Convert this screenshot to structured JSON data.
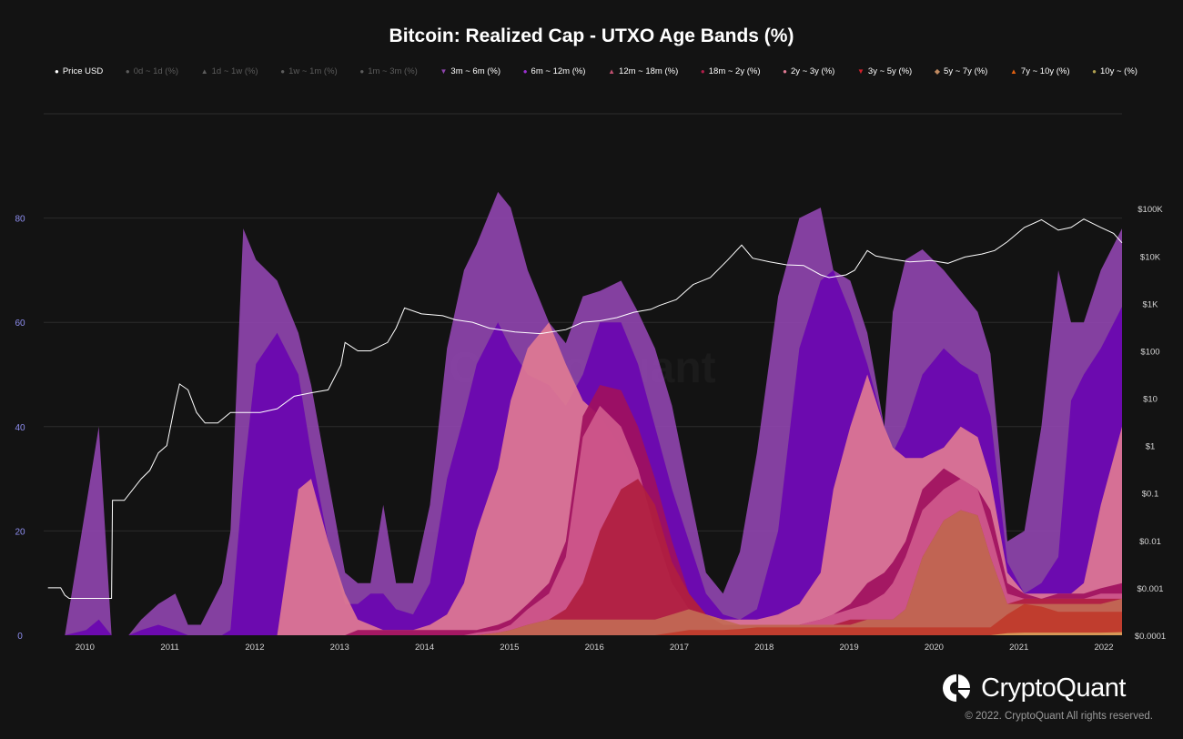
{
  "chart_data": {
    "type": "area",
    "title": "Bitcoin: Realized Cap - UTXO Age Bands (%)",
    "watermark": "CryptoQuant",
    "x": [
      2009.75,
      2010.0,
      2010.25,
      2010.4,
      2010.55,
      2010.75,
      2010.9,
      2011.1,
      2011.3,
      2011.45,
      2011.6,
      2011.85,
      2011.95,
      2012.1,
      2012.25,
      2012.5,
      2012.75,
      2012.9,
      2013.1,
      2013.3,
      2013.45,
      2013.6,
      2013.75,
      2013.9,
      2014.1,
      2014.3,
      2014.5,
      2014.7,
      2014.85,
      2015.1,
      2015.25,
      2015.45,
      2015.7,
      2015.9,
      2016.1,
      2016.3,
      2016.55,
      2016.75,
      2016.95,
      2017.15,
      2017.35,
      2017.55,
      2017.75,
      2017.95,
      2018.15,
      2018.4,
      2018.65,
      2018.9,
      2019.05,
      2019.25,
      2019.45,
      2019.65,
      2019.75,
      2019.9,
      2020.1,
      2020.35,
      2020.55,
      2020.75,
      2020.9,
      2021.1,
      2021.3,
      2021.5,
      2021.7,
      2021.85,
      2022.0,
      2022.2,
      2022.45
    ],
    "series": [
      {
        "name": "10y ~ (%)",
        "color": "#d9a05b",
        "values": [
          0,
          0,
          0,
          0,
          0,
          0,
          0,
          0,
          0,
          0,
          0,
          0,
          0,
          0,
          0,
          0,
          0,
          0,
          0,
          0,
          0,
          0,
          0,
          0,
          0,
          0,
          0,
          0,
          0,
          0,
          0,
          0,
          0,
          0,
          0,
          0,
          0,
          0,
          0,
          0,
          0,
          0,
          0,
          0,
          0,
          0,
          0,
          0,
          0,
          0,
          0,
          0,
          0,
          0,
          0,
          0,
          0,
          0,
          0,
          0.4,
          0.5,
          0.5,
          0.5,
          0.5,
          0.5,
          0.5,
          0.6
        ]
      },
      {
        "name": "7y ~ 10y (%)",
        "color": "#c0392b",
        "values": [
          0,
          0,
          0,
          0,
          0,
          0,
          0,
          0,
          0,
          0,
          0,
          0,
          0,
          0,
          0,
          0,
          0,
          0,
          0,
          0,
          0,
          0,
          0,
          0,
          0,
          0,
          0,
          0,
          0,
          0,
          0,
          0,
          0,
          0,
          0,
          0,
          0,
          0,
          0,
          0.5,
          1,
          1,
          1,
          1.2,
          1.5,
          1.5,
          1.5,
          1.5,
          1.5,
          1.5,
          1.5,
          1.5,
          1.5,
          1.5,
          1.5,
          1.5,
          1.5,
          1.5,
          1.5,
          4,
          6,
          5.5,
          4.5,
          4.5,
          4.5,
          4.5,
          4.5
        ]
      },
      {
        "name": "5y ~ 7y (%)",
        "color": "#c26a55",
        "values": [
          0,
          0,
          0,
          0,
          0,
          0,
          0,
          0,
          0,
          0,
          0,
          0,
          0,
          0,
          0,
          0,
          0,
          0,
          0,
          0,
          0,
          0,
          0,
          0,
          0,
          0,
          0,
          0,
          0,
          0.5,
          1,
          2,
          3,
          3,
          3,
          3,
          3,
          3,
          3,
          4,
          5,
          4,
          3,
          2,
          2,
          2,
          2,
          2,
          2,
          2,
          3,
          3,
          3,
          5,
          15,
          22,
          24,
          23,
          15,
          6,
          6,
          6,
          6,
          6,
          6,
          6,
          7
        ]
      },
      {
        "name": "3y ~ 5y (%)",
        "color": "#b01e3f",
        "values": [
          0,
          0,
          0,
          0,
          0,
          0,
          0,
          0,
          0,
          0,
          0,
          0,
          0,
          0,
          0,
          0,
          0,
          0,
          0,
          0,
          0,
          0,
          0,
          0,
          0,
          0,
          0,
          0,
          0,
          0.5,
          1,
          2,
          3,
          5,
          10,
          20,
          28,
          30,
          25,
          14,
          8,
          4,
          2,
          2,
          2,
          2,
          2,
          2,
          2,
          3,
          3,
          3,
          3,
          5,
          15,
          22,
          24,
          23,
          15,
          6,
          7,
          7,
          7,
          7,
          7,
          7,
          7
        ]
      },
      {
        "name": "2y ~ 3y (%)",
        "color": "#cf5a8c",
        "values": [
          0,
          0,
          0,
          0,
          0,
          0,
          0,
          0,
          0,
          0,
          0,
          0,
          0,
          0,
          0,
          0,
          0,
          0,
          0,
          0,
          0,
          0,
          0,
          0,
          0,
          0,
          0,
          0,
          0.5,
          1,
          2,
          5,
          8,
          15,
          38,
          44,
          40,
          32,
          20,
          10,
          5,
          3,
          2,
          2,
          2,
          2,
          2,
          3,
          4,
          5,
          6,
          8,
          10,
          15,
          24,
          28,
          30,
          28,
          20,
          8,
          7,
          7,
          7,
          7,
          7,
          8,
          8
        ]
      },
      {
        "name": "18m ~ 2y (%)",
        "color": "#a0105e",
        "values": [
          0,
          0,
          0,
          0,
          0,
          0,
          0,
          0,
          0,
          0,
          0,
          0,
          0,
          0,
          0,
          0,
          0,
          0,
          0,
          0,
          1,
          1,
          1,
          1,
          1,
          1,
          1,
          1,
          1,
          2,
          3,
          6,
          10,
          18,
          42,
          48,
          47,
          40,
          30,
          18,
          8,
          4,
          2,
          2,
          2,
          2,
          2,
          3,
          4,
          6,
          10,
          12,
          14,
          18,
          28,
          32,
          30,
          28,
          24,
          10,
          8,
          7,
          8,
          8,
          8,
          9,
          10
        ]
      },
      {
        "name": "12m ~ 18m (%)",
        "color": "#e07a93",
        "values": [
          0,
          0,
          0,
          0,
          0,
          0,
          0,
          0,
          0,
          0,
          0,
          0,
          0,
          0,
          0,
          0,
          28,
          30,
          18,
          8,
          3,
          2,
          1,
          1,
          1,
          2,
          4,
          10,
          20,
          32,
          45,
          55,
          60,
          52,
          45,
          42,
          36,
          30,
          22,
          14,
          6,
          4,
          3,
          3,
          3,
          4,
          6,
          12,
          28,
          40,
          50,
          40,
          36,
          34,
          34,
          36,
          40,
          38,
          30,
          12,
          8,
          8,
          8,
          8,
          10,
          25,
          40
        ]
      },
      {
        "name": "6m ~ 12m (%)",
        "color": "#6a05b0",
        "values": [
          0,
          0,
          1,
          3,
          0,
          0,
          1,
          2,
          1,
          0,
          0,
          0,
          1,
          30,
          52,
          58,
          50,
          35,
          18,
          6,
          6,
          8,
          8,
          5,
          4,
          10,
          30,
          42,
          52,
          60,
          55,
          50,
          48,
          44,
          50,
          60,
          60,
          52,
          40,
          28,
          18,
          8,
          4,
          3,
          5,
          20,
          55,
          68,
          70,
          62,
          52,
          40,
          35,
          40,
          50,
          55,
          52,
          50,
          42,
          14,
          8,
          10,
          15,
          45,
          50,
          55,
          63
        ]
      },
      {
        "name": "3m ~ 6m (%)",
        "color": "#8e44ad",
        "values": [
          0,
          0,
          25,
          40,
          0,
          0,
          3,
          6,
          8,
          2,
          2,
          10,
          20,
          78,
          72,
          68,
          58,
          48,
          30,
          12,
          10,
          10,
          25,
          10,
          10,
          25,
          55,
          70,
          75,
          85,
          82,
          70,
          60,
          56,
          65,
          66,
          68,
          62,
          55,
          44,
          28,
          12,
          8,
          16,
          35,
          65,
          80,
          82,
          70,
          68,
          58,
          40,
          62,
          72,
          74,
          70,
          66,
          62,
          54,
          18,
          20,
          40,
          70,
          60,
          60,
          70,
          78
        ]
      }
    ],
    "price": {
      "name": "Price USD",
      "x": [
        2009.8,
        2009.95,
        2010.0,
        2010.05,
        2010.55,
        2010.56,
        2010.7,
        2010.9,
        2011.0,
        2011.1,
        2011.2,
        2011.3,
        2011.35,
        2011.45,
        2011.55,
        2011.65,
        2011.8,
        2011.95,
        2012.1,
        2012.3,
        2012.5,
        2012.7,
        2012.9,
        2013.1,
        2013.25,
        2013.3,
        2013.45,
        2013.6,
        2013.8,
        2013.9,
        2014.0,
        2014.2,
        2014.45,
        2014.6,
        2014.8,
        2015.0,
        2015.3,
        2015.6,
        2015.9,
        2016.1,
        2016.3,
        2016.5,
        2016.7,
        2016.9,
        2017.0,
        2017.2,
        2017.4,
        2017.6,
        2017.8,
        2017.97,
        2018.1,
        2018.3,
        2018.5,
        2018.7,
        2018.9,
        2019.0,
        2019.2,
        2019.3,
        2019.45,
        2019.55,
        2019.75,
        2019.95,
        2020.2,
        2020.4,
        2020.6,
        2020.8,
        2020.95,
        2021.1,
        2021.3,
        2021.5,
        2021.7,
        2021.85,
        2022.0,
        2022.2,
        2022.35,
        2022.45
      ],
      "values": [
        0.001,
        0.001,
        0.0007,
        0.0006,
        0.0006,
        0.07,
        0.07,
        0.2,
        0.3,
        0.7,
        1,
        8,
        20,
        15,
        5,
        3,
        3,
        5,
        5,
        5,
        6,
        11,
        13,
        15,
        50,
        150,
        100,
        100,
        150,
        300,
        800,
        600,
        550,
        450,
        400,
        300,
        250,
        230,
        280,
        400,
        430,
        500,
        650,
        750,
        900,
        1200,
        2500,
        3500,
        8000,
        17000,
        9000,
        7500,
        6500,
        6300,
        4000,
        3500,
        4000,
        5000,
        13000,
        10000,
        8500,
        7500,
        8000,
        7000,
        9500,
        11000,
        13000,
        20000,
        40000,
        58000,
        35000,
        40000,
        60000,
        40000,
        30000,
        19000
      ]
    },
    "legend": [
      {
        "name": "Price USD",
        "marker": "●",
        "color": "#ffffff",
        "visible": true
      },
      {
        "name": "0d ~ 1d (%)",
        "marker": "●",
        "color": "#5c5c5c",
        "visible": false
      },
      {
        "name": "1d ~ 1w (%)",
        "marker": "▲",
        "color": "#5c5c5c",
        "visible": false
      },
      {
        "name": "1w ~ 1m (%)",
        "marker": "●",
        "color": "#5c5c5c",
        "visible": false
      },
      {
        "name": "1m ~ 3m (%)",
        "marker": "●",
        "color": "#5c5c5c",
        "visible": false
      },
      {
        "name": "3m ~ 6m (%)",
        "marker": "▼",
        "color": "#8e44ad",
        "visible": true
      },
      {
        "name": "6m ~ 12m (%)",
        "marker": "●",
        "color": "#9b30d0",
        "visible": true
      },
      {
        "name": "12m ~ 18m (%)",
        "marker": "▲",
        "color": "#c05070",
        "visible": true
      },
      {
        "name": "18m ~ 2y (%)",
        "marker": "●",
        "color": "#b01e4a",
        "visible": true
      },
      {
        "name": "2y ~ 3y (%)",
        "marker": "●",
        "color": "#e07a93",
        "visible": true
      },
      {
        "name": "3y ~ 5y (%)",
        "marker": "▼",
        "color": "#d0202a",
        "visible": true
      },
      {
        "name": "5y ~ 7y (%)",
        "marker": "◆",
        "color": "#c08a60",
        "visible": true
      },
      {
        "name": "7y ~ 10y (%)",
        "marker": "▲",
        "color": "#e06010",
        "visible": true
      },
      {
        "name": "10y ~ (%)",
        "marker": "●",
        "color": "#b0a050",
        "visible": true
      }
    ],
    "y_left": {
      "ticks": [
        "0",
        "20",
        "40",
        "60",
        "80"
      ],
      "values": [
        0,
        20,
        40,
        60,
        80
      ],
      "ylim": [
        0,
        100
      ]
    },
    "y_right": {
      "scale": "log",
      "ticks": [
        "$0.0001",
        "$0.001",
        "$0.01",
        "$0.1",
        "$1",
        "$10",
        "$100",
        "$1K",
        "$10K",
        "$100K"
      ],
      "values": [
        0.0001,
        0.001,
        0.01,
        0.1,
        1,
        10,
        100,
        1000,
        10000,
        100000
      ],
      "ylim": [
        0.0001,
        10000000
      ]
    },
    "x_axis": {
      "ticks": [
        "2010",
        "2011",
        "2012",
        "2013",
        "2014",
        "2015",
        "2016",
        "2017",
        "2018",
        "2019",
        "2020",
        "2021",
        "2022"
      ],
      "values": [
        2010,
        2011,
        2012,
        2013,
        2014,
        2015,
        2016,
        2017,
        2018,
        2019,
        2020,
        2021,
        2022
      ],
      "xlim": [
        2009.75,
        2022.45
      ]
    }
  },
  "branding": {
    "name": "CryptoQuant",
    "copyright": "© 2022. CryptoQuant All rights reserved."
  }
}
